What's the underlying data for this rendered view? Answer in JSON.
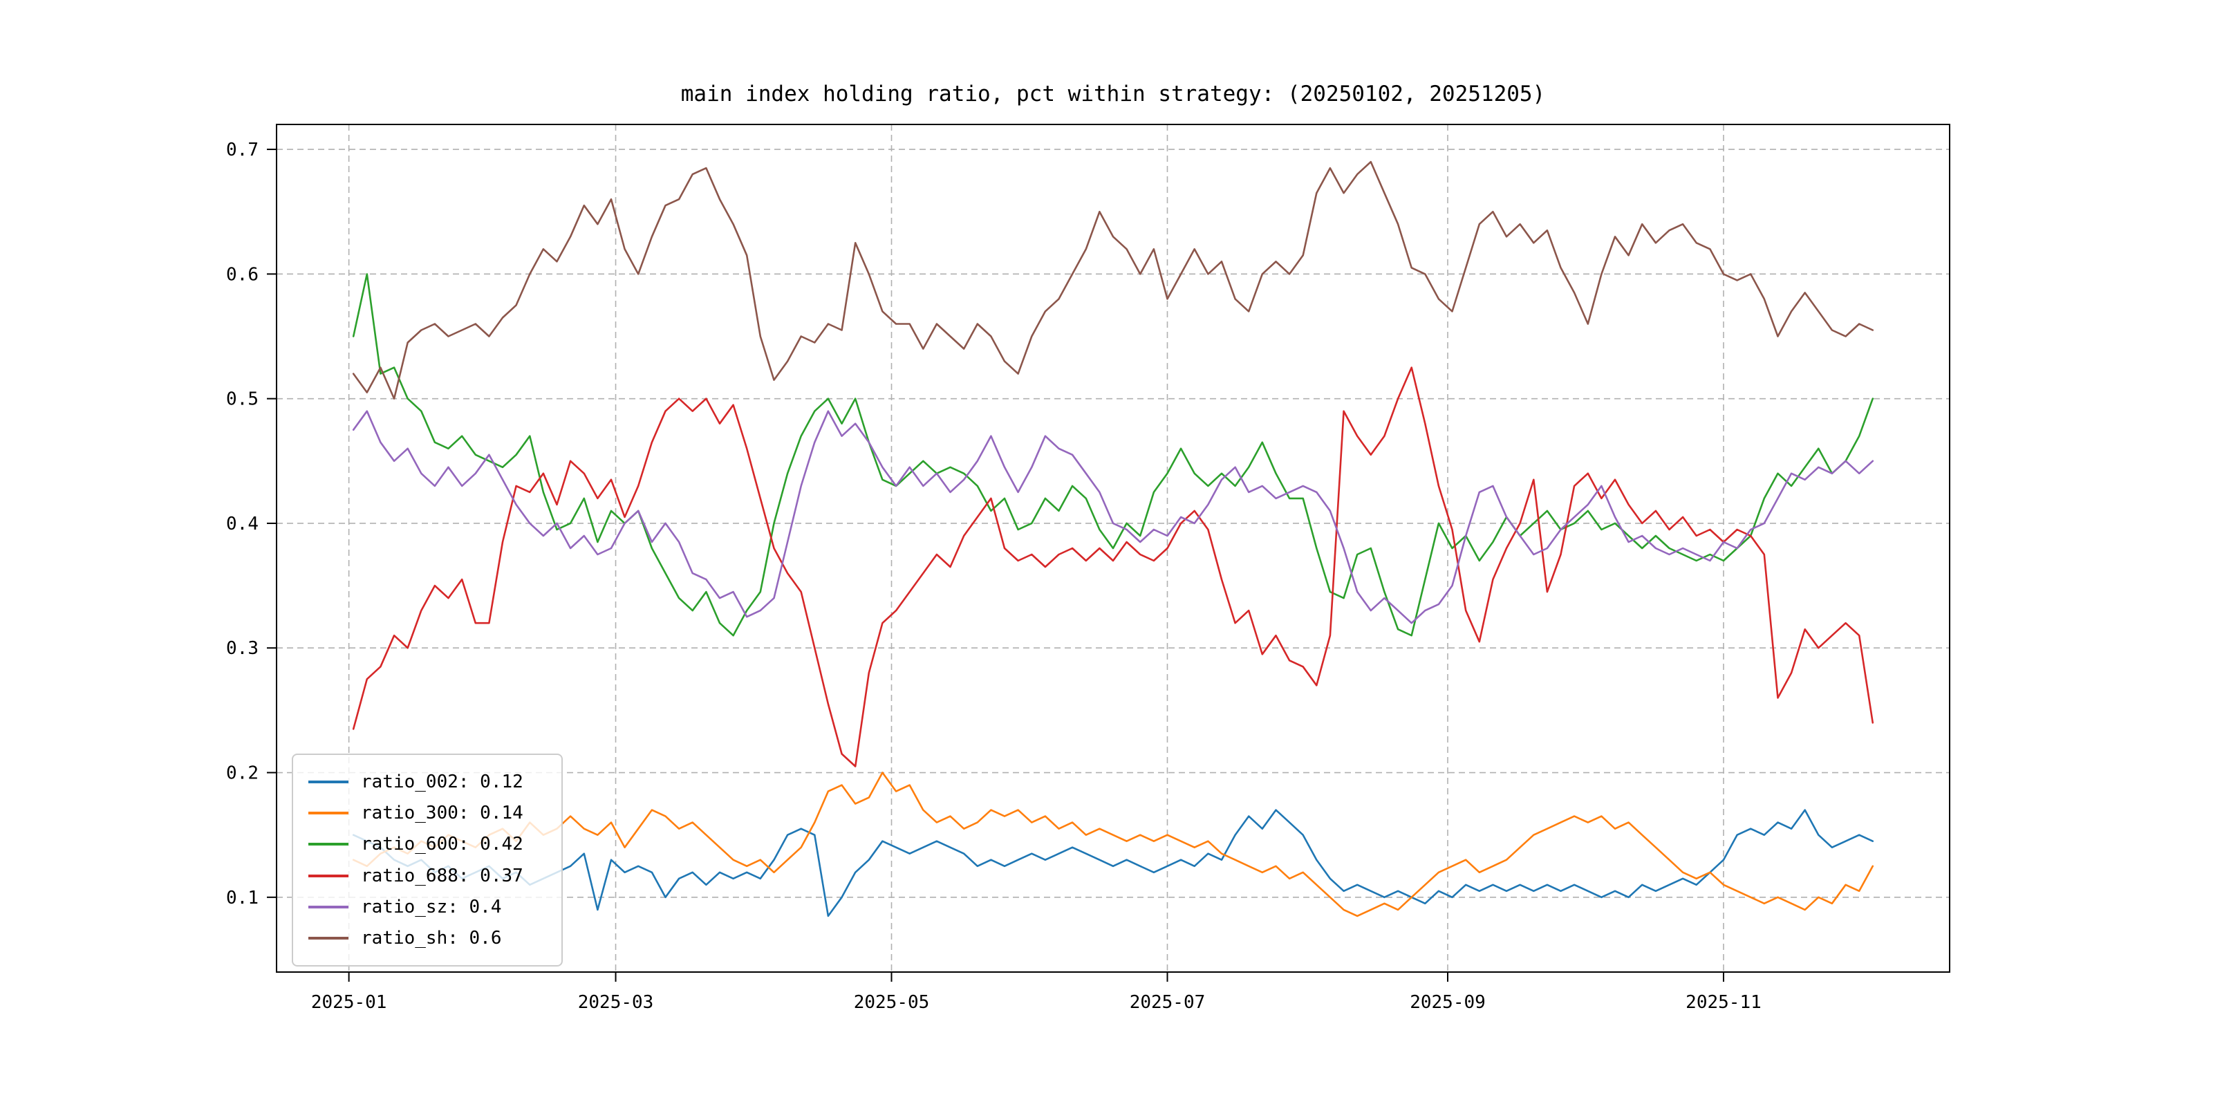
{
  "figure": {
    "title": "main index holding ratio, pct within strategy: (20250102, 20251205)",
    "background": "#ffffff"
  },
  "chart_data": {
    "type": "line",
    "title": "main index holding ratio, pct within strategy: (20250102, 20251205)",
    "x_start_date": "2025-01-02",
    "x_end_date": "2025-12-05",
    "x_step_days": 3,
    "n_points": 113,
    "xlim_days": [
      -16,
      354
    ],
    "ylim": [
      0.04,
      0.72
    ],
    "grid": {
      "on": true,
      "style": "dashed",
      "color": "#b0b0b0"
    },
    "axes_frame_color": "#000000",
    "x_ticks": [
      {
        "label": "2025-01",
        "day": 0
      },
      {
        "label": "2025-03",
        "day": 59
      },
      {
        "label": "2025-05",
        "day": 120
      },
      {
        "label": "2025-07",
        "day": 181
      },
      {
        "label": "2025-09",
        "day": 243
      },
      {
        "label": "2025-11",
        "day": 304
      }
    ],
    "y_ticks": [
      {
        "label": "0.1",
        "value": 0.1
      },
      {
        "label": "0.2",
        "value": 0.2
      },
      {
        "label": "0.3",
        "value": 0.3
      },
      {
        "label": "0.4",
        "value": 0.4
      },
      {
        "label": "0.5",
        "value": 0.5
      },
      {
        "label": "0.6",
        "value": 0.6
      },
      {
        "label": "0.7",
        "value": 0.7
      }
    ],
    "legend": {
      "position": "lower-left",
      "entries": [
        {
          "series": "ratio_002",
          "label": "ratio_002: 0.12",
          "color": "#1f77b4"
        },
        {
          "series": "ratio_300",
          "label": "ratio_300: 0.14",
          "color": "#ff7f0e"
        },
        {
          "series": "ratio_600",
          "label": "ratio_600: 0.42",
          "color": "#2ca02c"
        },
        {
          "series": "ratio_688",
          "label": "ratio_688: 0.37",
          "color": "#d62728"
        },
        {
          "series": "ratio_sz",
          "label": "ratio_sz: 0.4",
          "color": "#9467bd"
        },
        {
          "series": "ratio_sh",
          "label": "ratio_sh: 0.6",
          "color": "#8c564b"
        }
      ]
    },
    "series": [
      {
        "name": "ratio_002",
        "color": "#1f77b4",
        "mean": 0.12,
        "values": [
          0.15,
          0.145,
          0.14,
          0.13,
          0.125,
          0.13,
          0.12,
          0.125,
          0.115,
          0.12,
          0.125,
          0.115,
          0.12,
          0.11,
          0.115,
          0.12,
          0.125,
          0.135,
          0.09,
          0.13,
          0.12,
          0.125,
          0.12,
          0.1,
          0.115,
          0.12,
          0.11,
          0.12,
          0.115,
          0.12,
          0.115,
          0.13,
          0.15,
          0.155,
          0.15,
          0.085,
          0.1,
          0.12,
          0.13,
          0.145,
          0.14,
          0.135,
          0.14,
          0.145,
          0.14,
          0.135,
          0.125,
          0.13,
          0.125,
          0.13,
          0.135,
          0.13,
          0.135,
          0.14,
          0.135,
          0.13,
          0.125,
          0.13,
          0.125,
          0.12,
          0.125,
          0.13,
          0.125,
          0.135,
          0.13,
          0.15,
          0.165,
          0.155,
          0.17,
          0.16,
          0.15,
          0.13,
          0.115,
          0.105,
          0.11,
          0.105,
          0.1,
          0.105,
          0.1,
          0.095,
          0.105,
          0.1,
          0.11,
          0.105,
          0.11,
          0.105,
          0.11,
          0.105,
          0.11,
          0.105,
          0.11,
          0.105,
          0.1,
          0.105,
          0.1,
          0.11,
          0.105,
          0.11,
          0.115,
          0.11,
          0.12,
          0.13,
          0.15,
          0.155,
          0.15,
          0.16,
          0.155,
          0.17,
          0.15,
          0.14,
          0.145,
          0.15,
          0.145
        ]
      },
      {
        "name": "ratio_300",
        "color": "#ff7f0e",
        "mean": 0.14,
        "values": [
          0.13,
          0.125,
          0.135,
          0.14,
          0.135,
          0.145,
          0.14,
          0.15,
          0.145,
          0.14,
          0.15,
          0.155,
          0.145,
          0.16,
          0.15,
          0.155,
          0.165,
          0.155,
          0.15,
          0.16,
          0.14,
          0.155,
          0.17,
          0.165,
          0.155,
          0.16,
          0.15,
          0.14,
          0.13,
          0.125,
          0.13,
          0.12,
          0.13,
          0.14,
          0.16,
          0.185,
          0.19,
          0.175,
          0.18,
          0.2,
          0.185,
          0.19,
          0.17,
          0.16,
          0.165,
          0.155,
          0.16,
          0.17,
          0.165,
          0.17,
          0.16,
          0.165,
          0.155,
          0.16,
          0.15,
          0.155,
          0.15,
          0.145,
          0.15,
          0.145,
          0.15,
          0.145,
          0.14,
          0.145,
          0.135,
          0.13,
          0.125,
          0.12,
          0.125,
          0.115,
          0.12,
          0.11,
          0.1,
          0.09,
          0.085,
          0.09,
          0.095,
          0.09,
          0.1,
          0.11,
          0.12,
          0.125,
          0.13,
          0.12,
          0.125,
          0.13,
          0.14,
          0.15,
          0.155,
          0.16,
          0.165,
          0.16,
          0.165,
          0.155,
          0.16,
          0.15,
          0.14,
          0.13,
          0.12,
          0.115,
          0.12,
          0.11,
          0.105,
          0.1,
          0.095,
          0.1,
          0.095,
          0.09,
          0.1,
          0.095,
          0.11,
          0.105,
          0.125
        ]
      },
      {
        "name": "ratio_600",
        "color": "#2ca02c",
        "mean": 0.42,
        "values": [
          0.55,
          0.6,
          0.52,
          0.525,
          0.5,
          0.49,
          0.465,
          0.46,
          0.47,
          0.455,
          0.45,
          0.445,
          0.455,
          0.47,
          0.425,
          0.395,
          0.4,
          0.42,
          0.385,
          0.41,
          0.4,
          0.41,
          0.38,
          0.36,
          0.34,
          0.33,
          0.345,
          0.32,
          0.31,
          0.33,
          0.345,
          0.4,
          0.44,
          0.47,
          0.49,
          0.5,
          0.48,
          0.5,
          0.465,
          0.435,
          0.43,
          0.44,
          0.45,
          0.44,
          0.445,
          0.44,
          0.43,
          0.41,
          0.42,
          0.395,
          0.4,
          0.42,
          0.41,
          0.43,
          0.42,
          0.395,
          0.38,
          0.4,
          0.39,
          0.425,
          0.44,
          0.46,
          0.44,
          0.43,
          0.44,
          0.43,
          0.445,
          0.465,
          0.44,
          0.42,
          0.42,
          0.38,
          0.345,
          0.34,
          0.375,
          0.38,
          0.345,
          0.315,
          0.31,
          0.355,
          0.4,
          0.38,
          0.39,
          0.37,
          0.385,
          0.405,
          0.39,
          0.4,
          0.41,
          0.395,
          0.4,
          0.41,
          0.395,
          0.4,
          0.39,
          0.38,
          0.39,
          0.38,
          0.375,
          0.37,
          0.375,
          0.37,
          0.38,
          0.39,
          0.42,
          0.44,
          0.43,
          0.445,
          0.46,
          0.44,
          0.45,
          0.47,
          0.5
        ]
      },
      {
        "name": "ratio_688",
        "color": "#d62728",
        "mean": 0.37,
        "values": [
          0.235,
          0.275,
          0.285,
          0.31,
          0.3,
          0.33,
          0.35,
          0.34,
          0.355,
          0.32,
          0.32,
          0.385,
          0.43,
          0.425,
          0.44,
          0.415,
          0.45,
          0.44,
          0.42,
          0.435,
          0.405,
          0.43,
          0.465,
          0.49,
          0.5,
          0.49,
          0.5,
          0.48,
          0.495,
          0.46,
          0.42,
          0.38,
          0.36,
          0.345,
          0.3,
          0.255,
          0.215,
          0.205,
          0.28,
          0.32,
          0.33,
          0.345,
          0.36,
          0.375,
          0.365,
          0.39,
          0.405,
          0.42,
          0.38,
          0.37,
          0.375,
          0.365,
          0.375,
          0.38,
          0.37,
          0.38,
          0.37,
          0.385,
          0.375,
          0.37,
          0.38,
          0.4,
          0.41,
          0.395,
          0.355,
          0.32,
          0.33,
          0.295,
          0.31,
          0.29,
          0.285,
          0.27,
          0.31,
          0.49,
          0.47,
          0.455,
          0.47,
          0.5,
          0.525,
          0.48,
          0.43,
          0.395,
          0.33,
          0.305,
          0.355,
          0.38,
          0.4,
          0.435,
          0.345,
          0.375,
          0.43,
          0.44,
          0.42,
          0.435,
          0.415,
          0.4,
          0.41,
          0.395,
          0.405,
          0.39,
          0.395,
          0.385,
          0.395,
          0.39,
          0.375,
          0.26,
          0.28,
          0.315,
          0.3,
          0.31,
          0.32,
          0.31,
          0.24
        ]
      },
      {
        "name": "ratio_sz",
        "color": "#9467bd",
        "mean": 0.4,
        "values": [
          0.475,
          0.49,
          0.465,
          0.45,
          0.46,
          0.44,
          0.43,
          0.445,
          0.43,
          0.44,
          0.455,
          0.435,
          0.415,
          0.4,
          0.39,
          0.4,
          0.38,
          0.39,
          0.375,
          0.38,
          0.4,
          0.41,
          0.385,
          0.4,
          0.385,
          0.36,
          0.355,
          0.34,
          0.345,
          0.325,
          0.33,
          0.34,
          0.385,
          0.43,
          0.465,
          0.49,
          0.47,
          0.48,
          0.465,
          0.445,
          0.43,
          0.445,
          0.43,
          0.44,
          0.425,
          0.435,
          0.45,
          0.47,
          0.445,
          0.425,
          0.445,
          0.47,
          0.46,
          0.455,
          0.44,
          0.425,
          0.4,
          0.395,
          0.385,
          0.395,
          0.39,
          0.405,
          0.4,
          0.415,
          0.435,
          0.445,
          0.425,
          0.43,
          0.42,
          0.425,
          0.43,
          0.425,
          0.41,
          0.38,
          0.345,
          0.33,
          0.34,
          0.33,
          0.32,
          0.33,
          0.335,
          0.35,
          0.39,
          0.425,
          0.43,
          0.405,
          0.39,
          0.375,
          0.38,
          0.395,
          0.405,
          0.415,
          0.43,
          0.405,
          0.385,
          0.39,
          0.38,
          0.375,
          0.38,
          0.375,
          0.37,
          0.385,
          0.38,
          0.395,
          0.4,
          0.42,
          0.44,
          0.435,
          0.445,
          0.44,
          0.45,
          0.44,
          0.45
        ]
      },
      {
        "name": "ratio_sh",
        "color": "#8c564b",
        "mean": 0.6,
        "values": [
          0.52,
          0.505,
          0.525,
          0.5,
          0.545,
          0.555,
          0.56,
          0.55,
          0.555,
          0.56,
          0.55,
          0.565,
          0.575,
          0.6,
          0.62,
          0.61,
          0.63,
          0.655,
          0.64,
          0.66,
          0.62,
          0.6,
          0.63,
          0.655,
          0.66,
          0.68,
          0.685,
          0.66,
          0.64,
          0.615,
          0.55,
          0.515,
          0.53,
          0.55,
          0.545,
          0.56,
          0.555,
          0.625,
          0.6,
          0.57,
          0.56,
          0.56,
          0.54,
          0.56,
          0.55,
          0.54,
          0.56,
          0.55,
          0.53,
          0.52,
          0.55,
          0.57,
          0.58,
          0.6,
          0.62,
          0.65,
          0.63,
          0.62,
          0.6,
          0.62,
          0.58,
          0.6,
          0.62,
          0.6,
          0.61,
          0.58,
          0.57,
          0.6,
          0.61,
          0.6,
          0.615,
          0.665,
          0.685,
          0.665,
          0.68,
          0.69,
          0.665,
          0.64,
          0.605,
          0.6,
          0.58,
          0.57,
          0.605,
          0.64,
          0.65,
          0.63,
          0.64,
          0.625,
          0.635,
          0.605,
          0.585,
          0.56,
          0.6,
          0.63,
          0.615,
          0.64,
          0.625,
          0.635,
          0.64,
          0.625,
          0.62,
          0.6,
          0.595,
          0.6,
          0.58,
          0.55,
          0.57,
          0.585,
          0.57,
          0.555,
          0.55,
          0.56,
          0.555
        ]
      }
    ]
  }
}
